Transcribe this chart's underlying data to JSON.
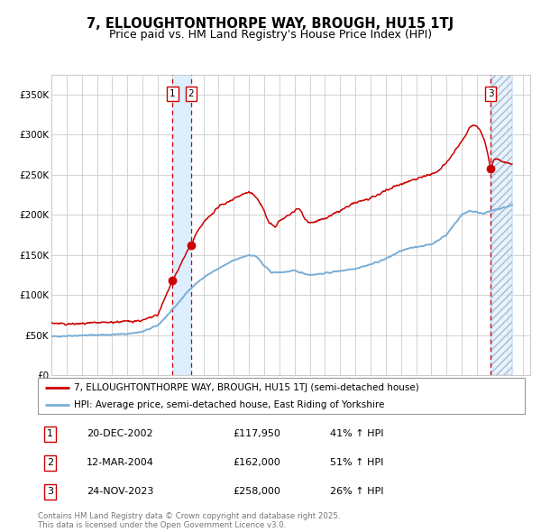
{
  "title": "7, ELLOUGHTONTHORPE WAY, BROUGH, HU15 1TJ",
  "subtitle": "Price paid vs. HM Land Registry's House Price Index (HPI)",
  "red_line_label": "7, ELLOUGHTONTHORPE WAY, BROUGH, HU15 1TJ (semi-detached house)",
  "blue_line_label": "HPI: Average price, semi-detached house, East Riding of Yorkshire",
  "legend_entries": [
    {
      "num": "1",
      "date": "20-DEC-2002",
      "price": "£117,950",
      "hpi": "41% ↑ HPI"
    },
    {
      "num": "2",
      "date": "12-MAR-2004",
      "price": "£162,000",
      "hpi": "51% ↑ HPI"
    },
    {
      "num": "3",
      "date": "24-NOV-2023",
      "price": "£258,000",
      "hpi": "26% ↑ HPI"
    }
  ],
  "copyright_text": "Contains HM Land Registry data © Crown copyright and database right 2025.\nThis data is licensed under the Open Government Licence v3.0.",
  "transactions": [
    {
      "date_decimal": 2002.97,
      "price": 117950,
      "label": "1"
    },
    {
      "date_decimal": 2004.19,
      "price": 162000,
      "label": "2"
    },
    {
      "date_decimal": 2023.9,
      "price": 258000,
      "label": "3"
    }
  ],
  "vline_dates": [
    2002.97,
    2004.19,
    2023.9
  ],
  "vband1": [
    2002.97,
    2004.19
  ],
  "vband2": [
    2023.9,
    2025.3
  ],
  "xmin": 1995.0,
  "xmax": 2026.5,
  "ymin": 0,
  "ymax": 375000,
  "yticks": [
    0,
    50000,
    100000,
    150000,
    200000,
    250000,
    300000,
    350000
  ],
  "ytick_labels": [
    "£0",
    "£50K",
    "£100K",
    "£150K",
    "£200K",
    "£250K",
    "£300K",
    "£350K"
  ],
  "red_color": "#cc0000",
  "blue_color": "#7aaed6",
  "grid_color": "#cccccc",
  "bg_color": "#ffffff",
  "vband_color": "#ddeeff",
  "title_fontsize": 10.5,
  "subtitle_fontsize": 9,
  "axis_fontsize": 7.5,
  "legend_fontsize": 7.5,
  "table_fontsize": 8
}
